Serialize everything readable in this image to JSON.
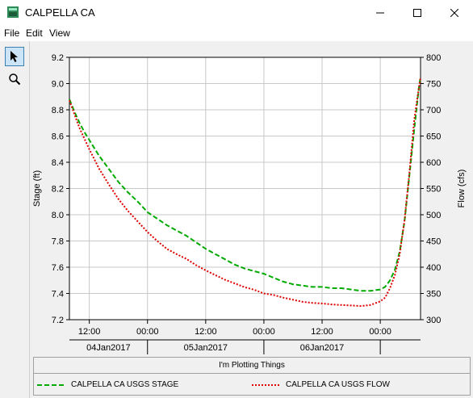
{
  "window": {
    "title": "CALPELLA CA",
    "icon": "gauge-app-icon"
  },
  "menu": {
    "items": [
      "File",
      "Edit",
      "View"
    ]
  },
  "toolbar": {
    "tools": [
      {
        "name": "pointer-tool",
        "icon": "arrow-pointer-icon",
        "active": true
      },
      {
        "name": "zoom-tool",
        "icon": "magnifier-icon",
        "active": false
      }
    ]
  },
  "chart_data": {
    "type": "line",
    "xlabel_ticks": [
      "12:00",
      "00:00",
      "12:00",
      "00:00",
      "12:00",
      "00:00"
    ],
    "date_labels": [
      "04Jan2017",
      "05Jan2017",
      "06Jan2017"
    ],
    "ylabel_left": "Stage (ft)",
    "ylabel_right": "Flow (cfs)",
    "ylim_left": [
      7.2,
      9.2
    ],
    "ylim_right": [
      300,
      800
    ],
    "yticks_left": [
      "9.2",
      "9.0",
      "8.8",
      "8.6",
      "8.4",
      "8.2",
      "8.0",
      "7.8",
      "7.6",
      "7.4",
      "7.2"
    ],
    "yticks_right": [
      "800",
      "750",
      "700",
      "650",
      "600",
      "550",
      "500",
      "450",
      "400",
      "350",
      "300"
    ],
    "x_unit": "hours from 04Jan2017 00:00",
    "xlim": [
      7.9,
      80.3
    ],
    "grid": true,
    "series": [
      {
        "name": "CALPELLA CA USGS STAGE",
        "axis": "left",
        "color": "#00aa00",
        "style": "dashed",
        "x": [
          7.9,
          9,
          10,
          11,
          12,
          14,
          16,
          18,
          20,
          22,
          24,
          26,
          28,
          30,
          32,
          34,
          36,
          38,
          40,
          42,
          44,
          46,
          48,
          50,
          52,
          54,
          56,
          58,
          60,
          62,
          64,
          66,
          68,
          70,
          72,
          73,
          74,
          75,
          76,
          77,
          78,
          79,
          80,
          80.3
        ],
        "values": [
          8.88,
          8.78,
          8.7,
          8.63,
          8.57,
          8.45,
          8.35,
          8.25,
          8.17,
          8.1,
          8.02,
          7.97,
          7.92,
          7.88,
          7.84,
          7.79,
          7.74,
          7.7,
          7.66,
          7.62,
          7.59,
          7.57,
          7.55,
          7.52,
          7.49,
          7.47,
          7.46,
          7.45,
          7.45,
          7.44,
          7.44,
          7.43,
          7.42,
          7.42,
          7.43,
          7.45,
          7.5,
          7.58,
          7.72,
          7.95,
          8.3,
          8.65,
          8.98,
          9.05
        ]
      },
      {
        "name": "CALPELLA CA USGS FLOW",
        "axis": "right",
        "color": "#e00000",
        "style": "dotted",
        "x": [
          7.9,
          9,
          10,
          11,
          12,
          14,
          16,
          18,
          20,
          22,
          24,
          26,
          28,
          30,
          32,
          34,
          36,
          38,
          40,
          42,
          44,
          46,
          48,
          50,
          52,
          54,
          56,
          58,
          60,
          62,
          64,
          66,
          68,
          70,
          72,
          73,
          74,
          75,
          76,
          77,
          78,
          79,
          80,
          80.3
        ],
        "values": [
          718,
          690,
          665,
          645,
          625,
          588,
          558,
          530,
          507,
          487,
          467,
          450,
          435,
          425,
          416,
          404,
          394,
          385,
          376,
          369,
          362,
          357,
          350,
          347,
          342,
          338,
          334,
          332,
          331,
          329,
          328,
          327,
          326,
          328,
          335,
          342,
          360,
          385,
          425,
          490,
          580,
          680,
          745,
          760
        ]
      }
    ]
  },
  "legend": {
    "title": "I'm Plotting Things",
    "entries": [
      "CALPELLA CA USGS STAGE",
      "CALPELLA CA USGS FLOW"
    ]
  }
}
